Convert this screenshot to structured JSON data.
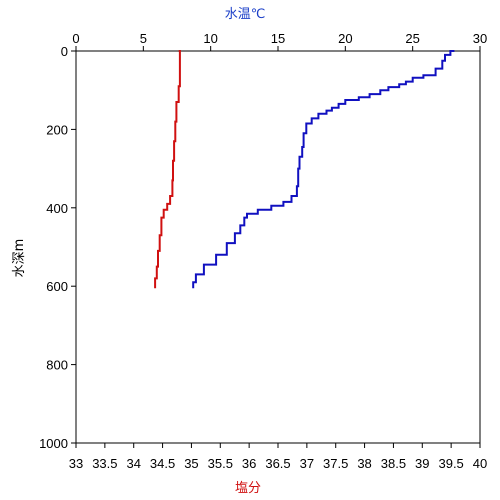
{
  "chart_data": {
    "type": "line",
    "x_top": {
      "label": "水温℃",
      "range": [
        0,
        30
      ],
      "ticks": [
        "0",
        "5",
        "10",
        "15",
        "20",
        "25",
        "30"
      ],
      "color": "#1a3ec8"
    },
    "x_bottom": {
      "label": "塩分",
      "range": [
        33,
        40
      ],
      "ticks": [
        "33",
        "33.5",
        "34",
        "34.5",
        "35",
        "35.5",
        "36",
        "36.5",
        "37",
        "37.5",
        "38",
        "38.5",
        "39",
        "39.5",
        "40"
      ],
      "color": "#d01010"
    },
    "y": {
      "label": "水深m",
      "range": [
        0,
        1000
      ],
      "inverted": true,
      "ticks": [
        "0",
        "200",
        "400",
        "600",
        "800",
        "1000"
      ]
    },
    "grid": false,
    "series": [
      {
        "axis": "x_top",
        "color": "#1010c0",
        "points": [
          [
            28.1,
            0
          ],
          [
            27.8,
            10
          ],
          [
            27.4,
            25
          ],
          [
            27.2,
            45
          ],
          [
            26.7,
            62
          ],
          [
            25.8,
            68
          ],
          [
            25.0,
            78
          ],
          [
            24.5,
            85
          ],
          [
            24.0,
            92
          ],
          [
            23.2,
            100
          ],
          [
            22.6,
            110
          ],
          [
            21.8,
            118
          ],
          [
            21.0,
            125
          ],
          [
            20.0,
            135
          ],
          [
            19.5,
            145
          ],
          [
            19.0,
            152
          ],
          [
            18.6,
            160
          ],
          [
            18.0,
            172
          ],
          [
            17.5,
            185
          ],
          [
            17.1,
            210
          ],
          [
            16.9,
            245
          ],
          [
            16.8,
            270
          ],
          [
            16.6,
            300
          ],
          [
            16.5,
            345
          ],
          [
            16.4,
            370
          ],
          [
            16.0,
            385
          ],
          [
            15.4,
            395
          ],
          [
            14.5,
            405
          ],
          [
            13.5,
            415
          ],
          [
            12.7,
            425
          ],
          [
            12.5,
            445
          ],
          [
            12.2,
            465
          ],
          [
            11.8,
            490
          ],
          [
            11.2,
            520
          ],
          [
            10.4,
            545
          ],
          [
            9.5,
            570
          ],
          [
            8.9,
            590
          ],
          [
            8.7,
            605
          ]
        ]
      },
      {
        "axis": "x_bottom",
        "color": "#d01010",
        "points": [
          [
            34.78,
            0
          ],
          [
            34.8,
            10
          ],
          [
            34.8,
            50
          ],
          [
            34.8,
            90
          ],
          [
            34.78,
            130
          ],
          [
            34.74,
            180
          ],
          [
            34.72,
            230
          ],
          [
            34.7,
            280
          ],
          [
            34.68,
            330
          ],
          [
            34.67,
            370
          ],
          [
            34.63,
            390
          ],
          [
            34.58,
            405
          ],
          [
            34.52,
            425
          ],
          [
            34.48,
            470
          ],
          [
            34.45,
            510
          ],
          [
            34.42,
            550
          ],
          [
            34.4,
            580
          ],
          [
            34.37,
            605
          ]
        ]
      }
    ]
  }
}
